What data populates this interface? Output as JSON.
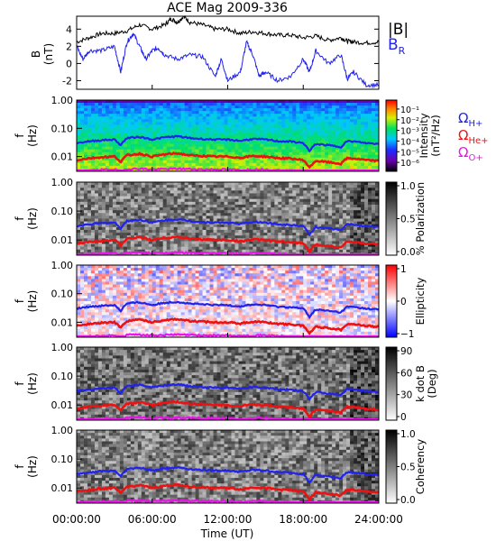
{
  "title": "ACE Mag 2009-336",
  "xlabel": "Time (UT)",
  "time_ticks": [
    "00:00:00",
    "06:00:00",
    "12:00:00",
    "18:00:00",
    "24:00:00"
  ],
  "legend_top": {
    "b_mag": "|B|",
    "b_r": "B",
    "b_r_sub": "R"
  },
  "legend_gyro": [
    {
      "sym": "Ω",
      "sub": "H+",
      "color": "#2222ee"
    },
    {
      "sym": "Ω",
      "sub": "He+",
      "color": "#ee1111"
    },
    {
      "sym": "Ω",
      "sub": "O+",
      "color": "#ee11ee"
    }
  ],
  "colors": {
    "b_mag": "#000000",
    "b_r": "#2222ee",
    "h_plus": "#2222ee",
    "he_plus": "#ee1111",
    "o_plus": "#ee11ee"
  },
  "freq_axis": {
    "label": "f",
    "unit": "(Hz)",
    "ticks": [
      "1.00",
      "0.10",
      "0.01"
    ],
    "scale": "log",
    "range": [
      0.003,
      1.0
    ]
  },
  "chart_data": [
    {
      "type": "line",
      "title": "ACE Mag 2009-336",
      "ylabel": "B",
      "yunit": "(nT)",
      "yticks": [
        "4",
        "2",
        "0",
        "-2"
      ],
      "ylim": [
        -3,
        5.5
      ],
      "xlim": [
        0,
        24
      ],
      "series": [
        {
          "name": "|B|",
          "x": [
            0,
            1,
            2,
            3,
            4,
            5,
            6,
            7,
            7.5,
            8,
            8.5,
            9,
            10,
            11,
            12,
            13,
            14,
            15,
            16,
            17,
            18,
            19,
            20,
            21,
            21.5,
            22,
            23,
            24
          ],
          "values": [
            2.5,
            3.0,
            3.5,
            3.5,
            3.8,
            4.5,
            4.0,
            4.5,
            5.2,
            4.8,
            5.5,
            4.8,
            4.5,
            4.0,
            4.0,
            3.5,
            3.7,
            3.5,
            3.3,
            3.3,
            3.0,
            3.2,
            2.7,
            3.0,
            2.6,
            2.5,
            2.4,
            2.5
          ]
        },
        {
          "name": "B_R",
          "x": [
            0,
            0.5,
            1,
            2,
            3,
            3.5,
            4,
            4.5,
            5,
            5.5,
            6,
            6.5,
            7,
            8,
            9,
            10,
            11,
            11.5,
            12,
            13,
            13.5,
            14,
            14.5,
            15,
            16,
            17,
            18,
            18.5,
            19,
            20,
            21,
            21.5,
            22,
            23,
            24
          ],
          "values": [
            2.0,
            0.5,
            1.5,
            1.5,
            2.0,
            -1.0,
            2.5,
            3.5,
            2.0,
            0.5,
            1.5,
            1.8,
            1.0,
            0.5,
            1.0,
            0.8,
            -1.5,
            0.5,
            -2.0,
            -1.0,
            2.5,
            1.0,
            -1.5,
            -1.0,
            -2.0,
            -1.5,
            0.5,
            -1.0,
            1.5,
            0.0,
            1.0,
            -1.8,
            -1.0,
            -2.5,
            -2.5
          ]
        }
      ]
    },
    {
      "type": "heatmap",
      "ylabel": "f",
      "yunit": "(Hz)",
      "colorbar": {
        "label": "Intensity",
        "unit": "(nT²/Hz)",
        "ticks": [
          "10⁻¹",
          "10⁻²",
          "10⁻³",
          "10⁻⁴",
          "10⁻⁵",
          "10⁻⁶"
        ],
        "range": [
          -6.5,
          -0.5
        ],
        "scale": "log"
      }
    },
    {
      "type": "heatmap",
      "ylabel": "f",
      "yunit": "(Hz)",
      "colorbar": {
        "label": "% Polarization",
        "ticks": [
          "1.0",
          "0.5",
          "0.0"
        ],
        "range": [
          0,
          1
        ]
      }
    },
    {
      "type": "heatmap",
      "ylabel": "f",
      "yunit": "(Hz)",
      "colorbar": {
        "label": "Ellipticity",
        "ticks": [
          "1",
          "0",
          "−1"
        ],
        "range": [
          -1,
          1
        ]
      }
    },
    {
      "type": "heatmap",
      "ylabel": "f",
      "yunit": "(Hz)",
      "colorbar": {
        "label": "k dot B",
        "unit": "(Deg)",
        "ticks": [
          "90",
          "60",
          "30",
          "0"
        ],
        "range": [
          0,
          90
        ]
      }
    },
    {
      "type": "heatmap",
      "ylabel": "f",
      "yunit": "(Hz)",
      "colorbar": {
        "label": "Coherency",
        "ticks": [
          "1.0",
          "0.5",
          "0.0"
        ],
        "range": [
          0,
          1
        ]
      }
    }
  ],
  "gyro_lines": {
    "x": [
      0,
      1,
      2,
      3,
      3.5,
      4,
      5,
      6,
      7,
      8,
      9,
      10,
      11,
      12,
      13,
      14,
      15,
      16,
      17,
      18,
      18.5,
      19,
      20,
      21,
      21.5,
      22,
      23,
      24
    ],
    "h_plus": [
      0.03,
      0.035,
      0.038,
      0.04,
      0.025,
      0.045,
      0.05,
      0.04,
      0.048,
      0.052,
      0.045,
      0.042,
      0.04,
      0.04,
      0.036,
      0.042,
      0.04,
      0.035,
      0.034,
      0.03,
      0.015,
      0.028,
      0.025,
      0.022,
      0.035,
      0.034,
      0.03,
      0.028
    ],
    "he_plus": [
      0.0075,
      0.0087,
      0.0095,
      0.01,
      0.0065,
      0.011,
      0.0125,
      0.01,
      0.012,
      0.013,
      0.011,
      0.0105,
      0.01,
      0.01,
      0.009,
      0.0105,
      0.01,
      0.0088,
      0.0085,
      0.0075,
      0.004,
      0.007,
      0.0063,
      0.0055,
      0.0088,
      0.0085,
      0.0075,
      0.007
    ],
    "o_plus": [
      0.003,
      0.0032,
      0.0034,
      0.0035,
      0.003,
      0.0036,
      0.0037,
      0.0035,
      0.0036,
      0.0037,
      0.0036,
      0.0035,
      0.0035,
      0.0035,
      0.0033,
      0.0035,
      0.0035,
      0.0033,
      0.0032,
      0.003,
      0.003,
      0.003,
      0.003,
      0.003,
      0.0032,
      0.0032,
      0.0031,
      0.003
    ]
  }
}
